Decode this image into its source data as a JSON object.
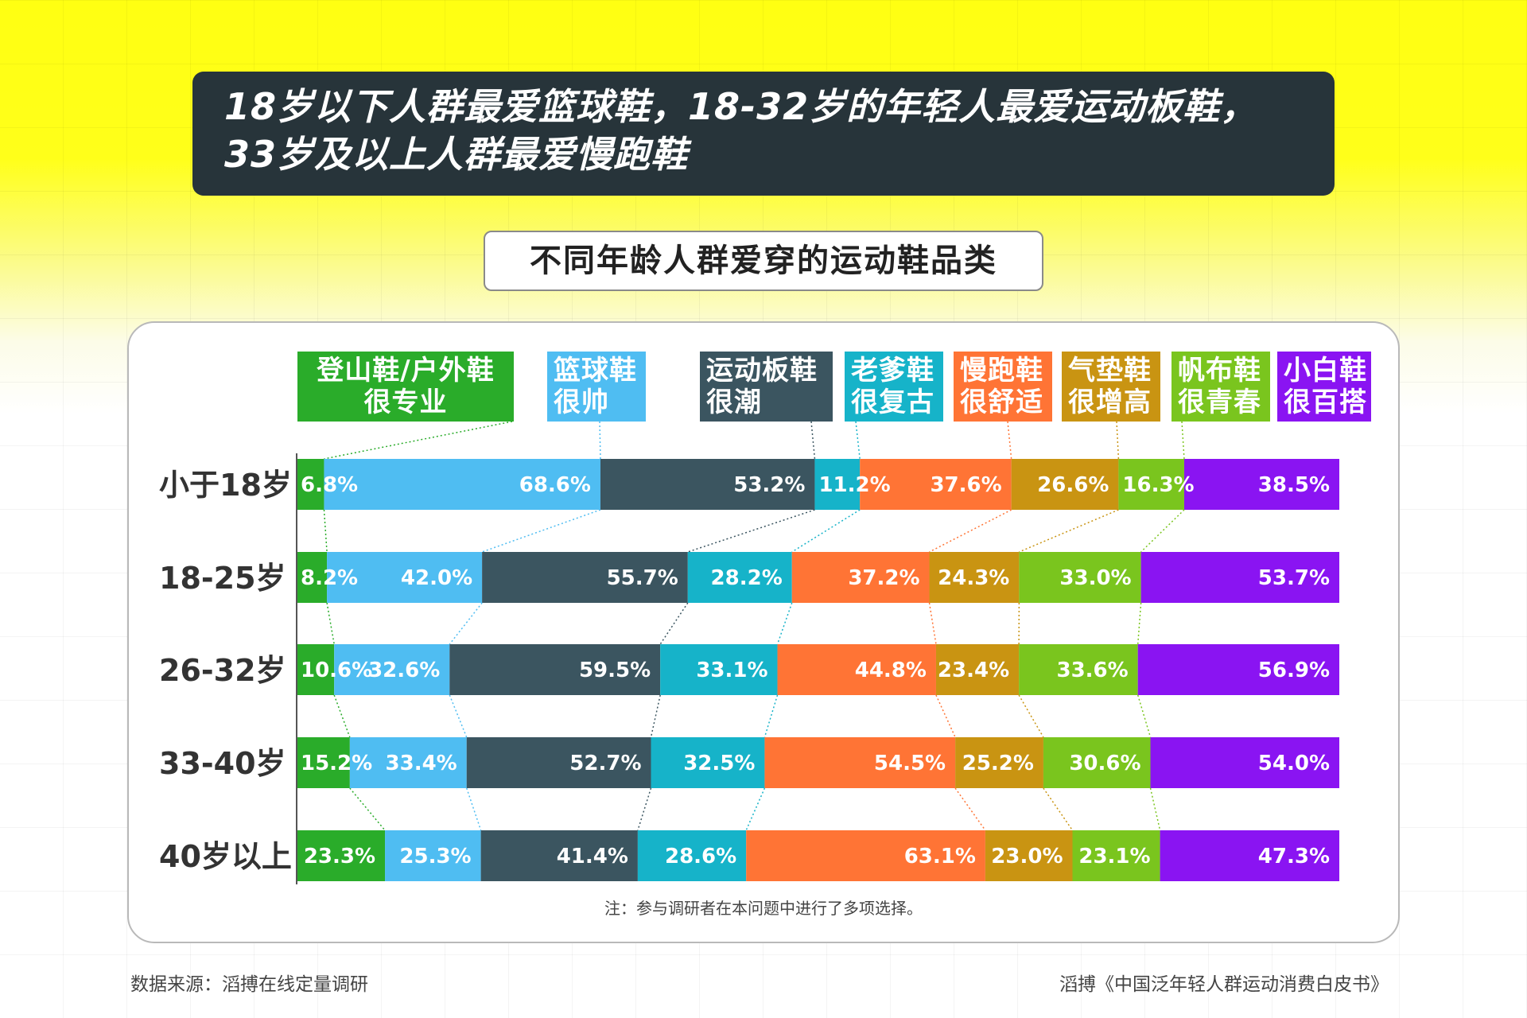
{
  "headline": {
    "line1": "18岁以下人群最爱篮球鞋，18-32岁的年轻人最爱运动板鞋，",
    "line2": "33岁及以上人群最爱慢跑鞋"
  },
  "note": "注：参与调研者在本问题中进行了多项选择。",
  "footer": {
    "source": "数据来源：滔搏在线定量调研",
    "report": "滔搏《中国泛年轻人群运动消费白皮书》"
  },
  "chart_data": {
    "type": "bar",
    "orientation": "horizontal",
    "stacked": true,
    "title": "不同年龄人群爱穿的运动鞋品类",
    "categories": [
      "小于18岁",
      "18-25岁",
      "26-32岁",
      "33-40岁",
      "40岁以上"
    ],
    "series": [
      {
        "name": "登山鞋/户外鞋 很专业",
        "line1": "登山鞋/户外鞋",
        "line2": "很专业",
        "color": "#2aac2a",
        "values": [
          6.8,
          8.2,
          10.6,
          15.2,
          23.3
        ],
        "labels": [
          "6.8%",
          "8.2%",
          "10.6%",
          "15.2%",
          "23.3%"
        ]
      },
      {
        "name": "篮球鞋 很帅",
        "line1": "篮球鞋",
        "line2": "很帅",
        "color": "#4fbdf2",
        "values": [
          68.6,
          42.0,
          32.6,
          33.4,
          25.3
        ],
        "labels": [
          "68.6%",
          "42.0%",
          "32.6%",
          "33.4%",
          "25.3%"
        ]
      },
      {
        "name": "运动板鞋 很潮",
        "line1": "运动板鞋",
        "line2": "很潮",
        "color": "#3b5560",
        "values": [
          53.2,
          55.7,
          59.5,
          52.7,
          41.4
        ],
        "labels": [
          "53.2%",
          "55.7%",
          "59.5%",
          "52.7%",
          "41.4%"
        ]
      },
      {
        "name": "老爹鞋 很复古",
        "line1": "老爹鞋",
        "line2": "很复古",
        "color": "#16b3c9",
        "values": [
          11.2,
          28.2,
          33.1,
          32.5,
          28.6
        ],
        "labels": [
          "11.2%",
          "28.2%",
          "33.1%",
          "32.5%",
          "28.6%"
        ]
      },
      {
        "name": "慢跑鞋 很舒适",
        "line1": "慢跑鞋",
        "line2": "很舒适",
        "color": "#ff7435",
        "values": [
          37.6,
          37.2,
          44.8,
          54.5,
          63.1
        ],
        "labels": [
          "37.6%",
          "37.2%",
          "44.8%",
          "54.5%",
          "63.1%"
        ]
      },
      {
        "name": "气垫鞋 很增高",
        "line1": "气垫鞋",
        "line2": "很增高",
        "color": "#c99412",
        "values": [
          26.6,
          24.3,
          23.4,
          25.2,
          23.0
        ],
        "labels": [
          "26.6%",
          "24.3%",
          "23.4%",
          "25.2%",
          "23.0%"
        ]
      },
      {
        "name": "帆布鞋 很青春",
        "line1": "帆布鞋",
        "line2": "很青春",
        "color": "#7ac51e",
        "values": [
          16.3,
          33.0,
          33.6,
          30.6,
          23.1
        ],
        "labels": [
          "16.3%",
          "33.0%",
          "33.6%",
          "30.6%",
          "23.1%"
        ]
      },
      {
        "name": "小白鞋 很百搭",
        "line1": "小白鞋",
        "line2": "很百搭",
        "color": "#8a14f2",
        "values": [
          38.5,
          53.7,
          56.9,
          54.0,
          47.3
        ],
        "labels": [
          "38.5%",
          "53.7%",
          "56.9%",
          "54.0%",
          "47.3%"
        ]
      }
    ],
    "legend_position": "top",
    "grid": false
  }
}
